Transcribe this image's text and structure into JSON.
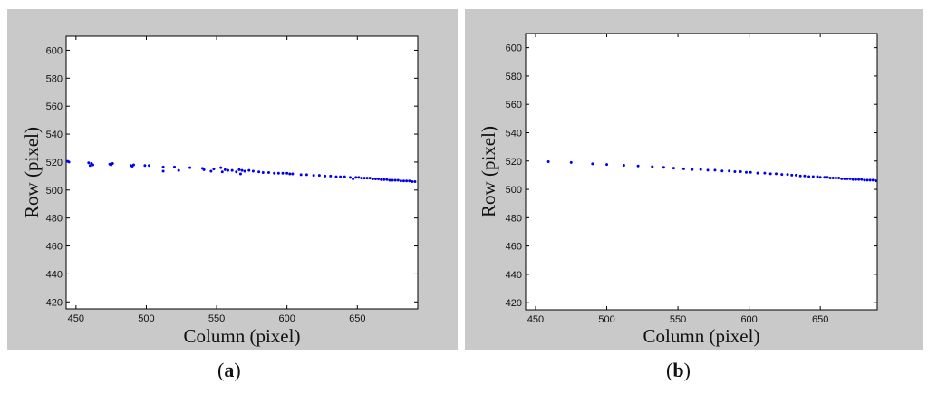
{
  "colors": {
    "marker": "#0000ee",
    "frame": "#c9c9c9",
    "plot_bg": "#ffffff"
  },
  "captions": {
    "a": "a",
    "b": "b"
  },
  "chart_data": [
    {
      "type": "scatter",
      "panel": "a",
      "xlabel": "Column (pixel)",
      "ylabel": "Row (pixel)",
      "xlim": [
        443,
        693
      ],
      "ylim": [
        415,
        610
      ],
      "xticks": [
        450,
        500,
        550,
        600,
        650
      ],
      "yticks": [
        420,
        440,
        460,
        480,
        500,
        520,
        540,
        560,
        580,
        600
      ],
      "grid": false,
      "series": [
        {
          "x": [
            444,
            445,
            459,
            460,
            461,
            462,
            474,
            475,
            476,
            489,
            490,
            491,
            499,
            502,
            512,
            512,
            520,
            523,
            531,
            540,
            541,
            546,
            548,
            553,
            554,
            556,
            558,
            561,
            564,
            566,
            567,
            568,
            570,
            573,
            576,
            580,
            583,
            587,
            591,
            594,
            597,
            600,
            602,
            604,
            610,
            614,
            619,
            623,
            627,
            631,
            635,
            638,
            641,
            645,
            647,
            649,
            651,
            653,
            655,
            657,
            659,
            661,
            663,
            665,
            667,
            669,
            671,
            673,
            675,
            677,
            679,
            681,
            683,
            685,
            687,
            689,
            691
          ],
          "y": [
            520.5,
            520,
            519.5,
            517.5,
            519,
            518,
            518.5,
            518,
            519,
            517.5,
            517,
            518,
            517.5,
            517.5,
            516.5,
            513.5,
            516.5,
            514,
            516,
            515.5,
            514.5,
            513.5,
            515,
            516,
            513,
            514.5,
            514,
            514,
            513,
            514.5,
            511.5,
            514,
            513.5,
            514,
            513.5,
            513,
            512.5,
            512.5,
            512,
            512,
            512,
            512,
            511.5,
            511.5,
            511,
            511,
            510.5,
            510.5,
            510,
            510,
            509.5,
            509.5,
            509.5,
            509,
            508,
            509,
            509,
            508.5,
            508.5,
            508.5,
            508.5,
            508,
            508,
            508,
            507.5,
            507.5,
            507.5,
            507,
            507,
            507,
            507,
            506.5,
            506.5,
            506.5,
            506.5,
            506,
            506
          ]
        }
      ]
    },
    {
      "type": "scatter",
      "panel": "b",
      "xlabel": "Column (pixel)",
      "ylabel": "Row (pixel)",
      "xlim": [
        443,
        690
      ],
      "ylim": [
        415,
        610
      ],
      "xticks": [
        450,
        500,
        550,
        600,
        650
      ],
      "yticks": [
        420,
        440,
        460,
        480,
        500,
        520,
        540,
        560,
        580,
        600
      ],
      "grid": false,
      "series": [
        {
          "x": [
            459,
            475,
            490,
            500,
            512,
            522,
            532,
            540,
            547,
            554,
            560,
            566,
            571,
            576,
            581,
            586,
            590,
            594,
            598,
            601,
            606,
            611,
            615,
            619,
            623,
            627,
            630,
            633,
            636,
            639,
            642,
            645,
            648,
            650,
            653,
            655,
            657,
            659,
            661,
            663,
            665,
            667,
            669,
            671,
            673,
            675,
            677,
            679,
            681,
            683,
            685,
            687,
            689
          ],
          "y": [
            519.5,
            519,
            518,
            517.5,
            517,
            516.5,
            516,
            515.5,
            515,
            514.5,
            514,
            514,
            513.5,
            513.5,
            513,
            513,
            512.5,
            512.5,
            512,
            512,
            511.5,
            511.5,
            511,
            511,
            510.5,
            510.5,
            510,
            510,
            509.5,
            509.5,
            509,
            509,
            509,
            508.5,
            508.5,
            508.5,
            508,
            508,
            508,
            508,
            507.5,
            507.5,
            507.5,
            507.5,
            507,
            507,
            507,
            507,
            506.5,
            506.5,
            506.5,
            506.5,
            506
          ]
        }
      ]
    }
  ]
}
